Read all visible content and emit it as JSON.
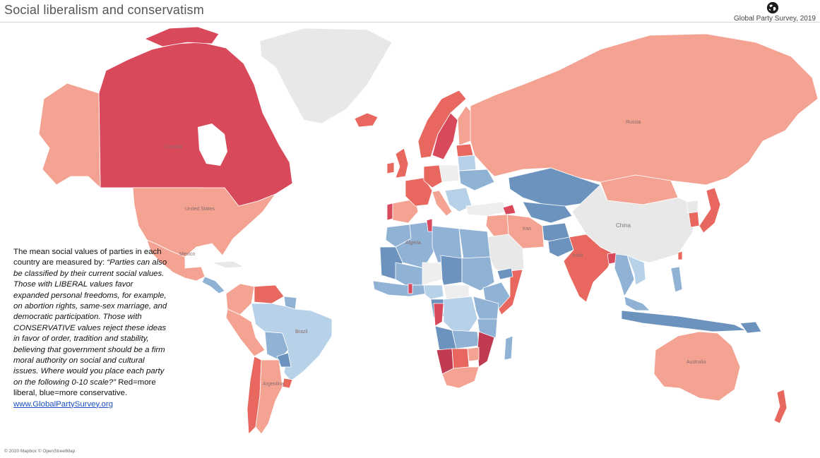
{
  "header": {
    "title": "Social liberalism and conservatism",
    "brand": "Global Party Survey, 2019"
  },
  "legend": {
    "intro": "The mean social values of parties in each country are measured by: ",
    "quote": "“Parties can also be classified by their current social values. Those with LIBERAL values favor expanded personal freedoms, for example, on abortion rights, same-sex marriage, and democratic participation.  Those with CONSERVATIVE values reject these ideas in favor of order, tradition and stability, believing that government should be a firm moral authority on social and cultural issues. Where would you place each party on the following 0-10 scale?”",
    "scale_note": "Red=more liberal, blue=more conservative.",
    "link": "www.GlobalPartySurvey.org"
  },
  "map": {
    "labels": {
      "canada": "Canada",
      "usa": "United States",
      "mexico": "Mexico",
      "brazil": "Brazil",
      "argentina": "Argentina",
      "russia": "Russia",
      "china": "China",
      "india": "India",
      "iran": "Iran",
      "algeria": "Algeria",
      "australia": "Australia"
    },
    "colors": {
      "liberal_strong": "#d9495c",
      "liberal": "#e8675f",
      "liberal_light": "#f4a392",
      "neutral": "#eeeeee",
      "cons_light": "#b7d2e8",
      "cons": "#8fb2d5",
      "cons_strong": "#6b93bd",
      "no_data": "#e8e8e8"
    }
  },
  "footer": {
    "attribution": "© 2020 Mapbox © OpenStreetMap"
  }
}
